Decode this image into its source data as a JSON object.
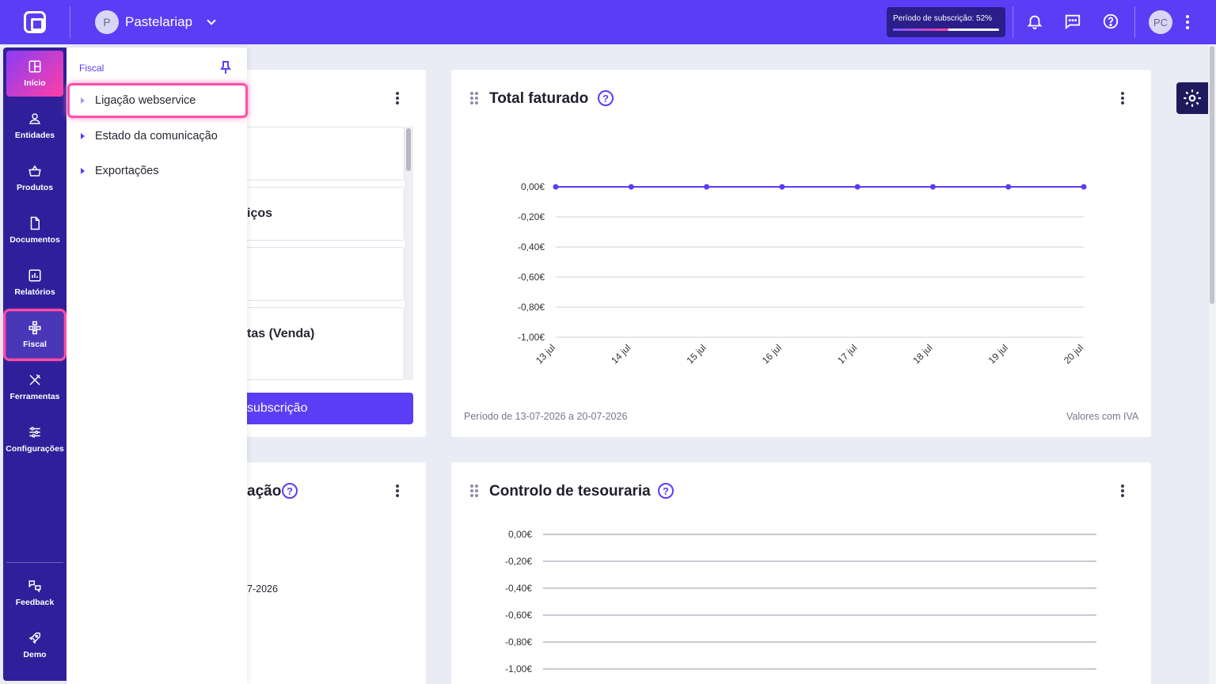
{
  "header": {
    "company_initial": "P",
    "company_name": "Pastelariap",
    "subscription_label": "Período de subscrição: 52%",
    "subscription_progress": 0.52,
    "user_initials": "PC"
  },
  "nav": {
    "items": [
      {
        "label": "Início",
        "icon": "dashboard-icon"
      },
      {
        "label": "Entidades",
        "icon": "user-icon"
      },
      {
        "label": "Produtos",
        "icon": "basket-icon"
      },
      {
        "label": "Documentos",
        "icon": "document-icon"
      },
      {
        "label": "Relatórios",
        "icon": "bar-chart-icon"
      },
      {
        "label": "Fiscal",
        "icon": "fiscal-network-icon"
      },
      {
        "label": "Ferramentas",
        "icon": "tools-icon"
      },
      {
        "label": "Configurações",
        "icon": "sliders-icon"
      }
    ],
    "bottom": [
      {
        "label": "Feedback",
        "icon": "feedback-icon"
      },
      {
        "label": "Demo",
        "icon": "rocket-icon"
      }
    ]
  },
  "flyout": {
    "title": "Fiscal",
    "items": [
      {
        "label": "Ligação webservice"
      },
      {
        "label": "Estado da comunicação"
      },
      {
        "label": "Exportações"
      }
    ]
  },
  "left_card": {
    "rows": [
      "",
      "iços",
      "",
      "tas (Venda)"
    ],
    "button_label": "subscrição"
  },
  "bottom_left_card": {
    "title": "ação",
    "date_fragment": "7-2026"
  },
  "total_faturado": {
    "title": "Total faturado",
    "footer_left": "Período de 13-07-2026 a 20-07-2026",
    "footer_right": "Valores com IVA"
  },
  "tesouraria": {
    "title": "Controlo de tesouraria"
  },
  "chart_data": [
    {
      "type": "line",
      "title": "Total faturado",
      "x": [
        "13 jul",
        "14 jul",
        "15 jul",
        "16 jul",
        "17 jul",
        "18 jul",
        "19 jul",
        "20 jul"
      ],
      "series": [
        {
          "values": [
            0,
            0,
            0,
            0,
            0,
            0,
            0,
            0
          ]
        }
      ],
      "yticks": [
        "0,00€",
        "-0,20€",
        "-0,40€",
        "-0,60€",
        "-0,80€",
        "-1,00€"
      ],
      "ylim": [
        -1,
        0
      ],
      "grid": true,
      "colors": {
        "line": "#5b3df5",
        "grid": "#cfcfd8"
      }
    },
    {
      "type": "line",
      "title": "Controlo de tesouraria",
      "yticks": [
        "0,00€",
        "-0,20€",
        "-0,40€",
        "-0,60€",
        "-0,80€",
        "-1,00€"
      ],
      "ylim": [
        -1,
        0
      ],
      "grid": true
    }
  ]
}
